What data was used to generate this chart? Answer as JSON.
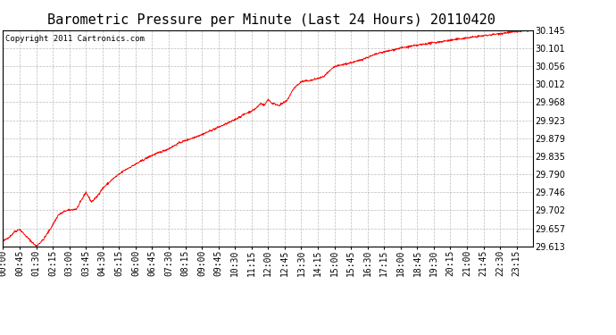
{
  "title": "Barometric Pressure per Minute (Last 24 Hours) 20110420",
  "copyright": "Copyright 2011 Cartronics.com",
  "line_color": "#ff0000",
  "background_color": "#ffffff",
  "plot_bg_color": "#ffffff",
  "grid_color": "#aaaaaa",
  "y_min": 29.613,
  "y_max": 30.145,
  "y_ticks": [
    29.613,
    29.657,
    29.702,
    29.746,
    29.79,
    29.835,
    29.879,
    29.923,
    29.968,
    30.012,
    30.056,
    30.101,
    30.145
  ],
  "x_labels": [
    "00:00",
    "00:45",
    "01:30",
    "02:15",
    "03:00",
    "03:45",
    "04:30",
    "05:15",
    "06:00",
    "06:45",
    "07:30",
    "08:15",
    "09:00",
    "09:45",
    "10:30",
    "11:15",
    "12:00",
    "12:45",
    "13:30",
    "14:15",
    "15:00",
    "15:45",
    "16:30",
    "17:15",
    "18:00",
    "18:45",
    "19:30",
    "20:15",
    "21:00",
    "21:45",
    "22:30",
    "23:15"
  ],
  "title_fontsize": 11,
  "copyright_fontsize": 6.5,
  "tick_fontsize": 7
}
